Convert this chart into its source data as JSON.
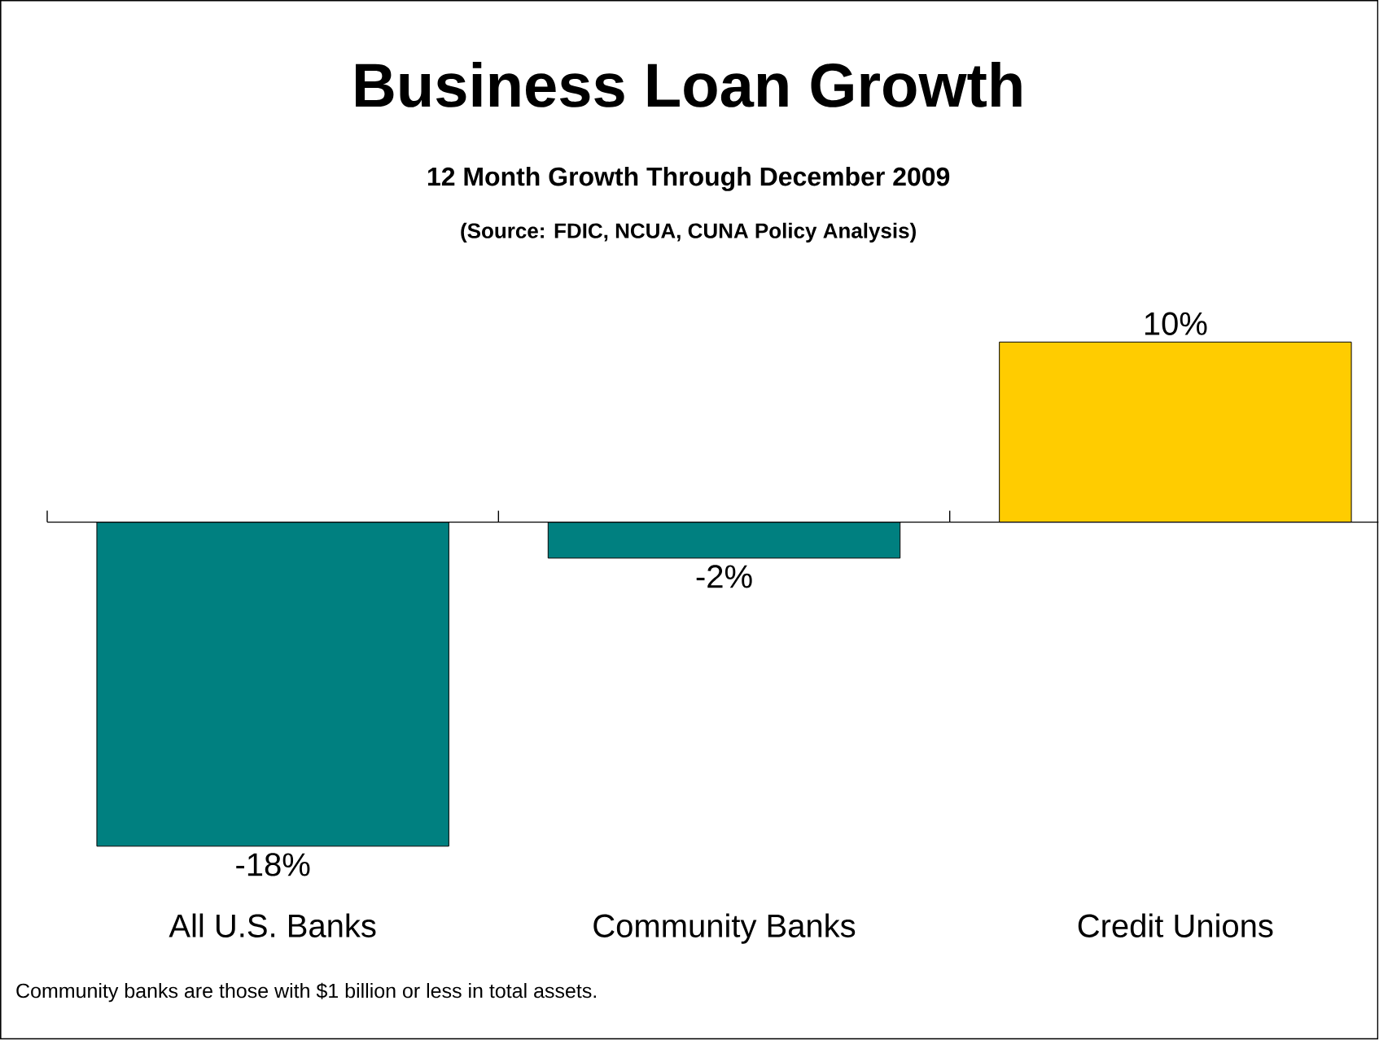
{
  "chart_data": {
    "type": "bar",
    "title": "Business Loan Growth",
    "subtitle": "12 Month Growth Through December 2009",
    "categories": [
      "All U.S. Banks",
      "Community Banks",
      "Credit Unions"
    ],
    "values": [
      -18,
      -2,
      10
    ],
    "colors": [
      "#008080",
      "#008080",
      "#ffcc00"
    ],
    "value_labels": [
      "-18%",
      "-2%",
      "10%"
    ],
    "annotations": [
      "(Source: FDIC, NCUA, CUNA Policy Analysis)",
      "Community banks are those with $1 billion or less in total assets."
    ]
  }
}
